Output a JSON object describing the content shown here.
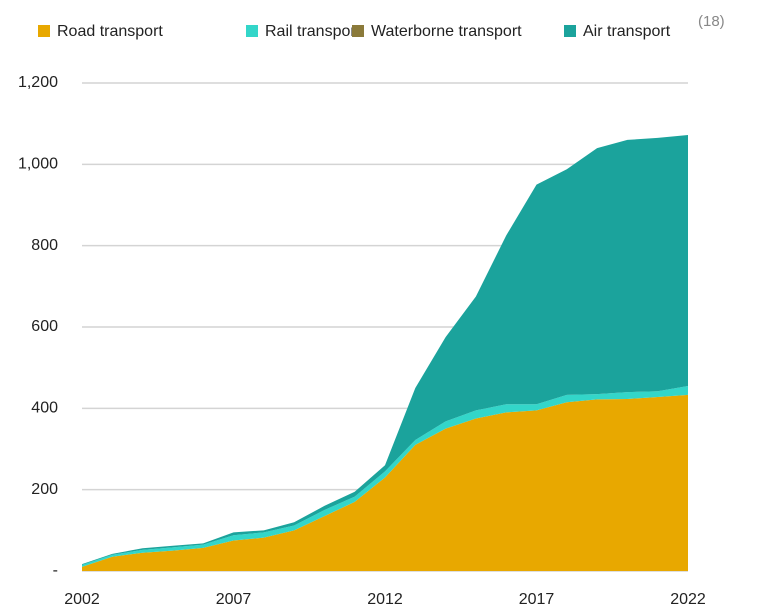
{
  "chart_data": {
    "type": "stacked_area",
    "annotation": "(18)",
    "x": [
      2002,
      2003,
      2004,
      2005,
      2006,
      2007,
      2008,
      2009,
      2010,
      2011,
      2012,
      2013,
      2014,
      2015,
      2016,
      2017,
      2018,
      2019,
      2020,
      2021,
      2022
    ],
    "xlim": [
      2002,
      2022
    ],
    "xticks": [
      2002,
      2007,
      2012,
      2017,
      2022
    ],
    "ylim": [
      0,
      1200
    ],
    "yticks": [
      {
        "value": 0,
        "label": "-"
      },
      200,
      400,
      600,
      800,
      {
        "value": 1000,
        "label": "1,000"
      },
      {
        "value": 1200,
        "label": "1,200"
      }
    ],
    "grid": true,
    "legend": "top",
    "series": [
      {
        "name": "Road transport",
        "color": "#e8a800",
        "values": [
          10,
          35,
          45,
          50,
          57,
          75,
          82,
          100,
          135,
          170,
          230,
          310,
          350,
          375,
          390,
          395,
          415,
          422,
          423,
          428,
          433
        ]
      },
      {
        "name": "Rail transport",
        "color": "#33d6c9",
        "values": [
          5,
          5,
          7,
          8,
          8,
          13,
          13,
          12,
          15,
          13,
          15,
          12,
          18,
          20,
          20,
          15,
          18,
          13,
          17,
          14,
          22
        ]
      },
      {
        "name": "Waterborne transport",
        "color": "#8b7a3a",
        "values": [
          0,
          0,
          0,
          0,
          0,
          0,
          0,
          0,
          0,
          0,
          0,
          0,
          0,
          0,
          0,
          0,
          0,
          0,
          0,
          0,
          0
        ]
      },
      {
        "name": "Air transport",
        "color": "#1ba39c",
        "values": [
          2,
          2,
          4,
          4,
          3,
          7,
          5,
          8,
          10,
          12,
          15,
          128,
          207,
          280,
          415,
          540,
          555,
          605,
          620,
          623,
          617
        ]
      }
    ]
  }
}
